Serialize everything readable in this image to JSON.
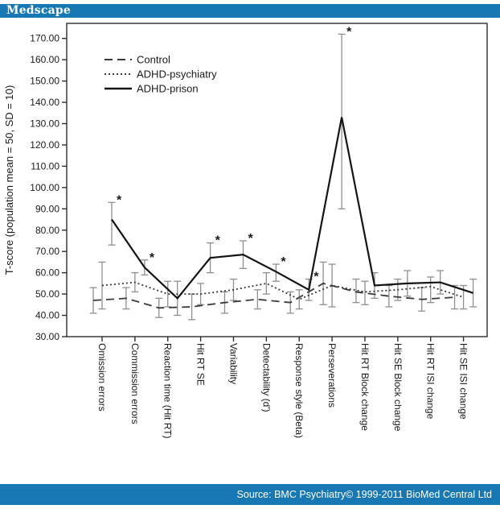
{
  "header": {
    "logo": "Medscape"
  },
  "footer": {
    "source": "Source: BMC Psychiatry© 1999-2011 BioMed Central Ltd"
  },
  "colors": {
    "brand_blue": "#1878b4",
    "axis_dark": "#2e2e2e",
    "text_dark": "#1a1a1a",
    "error_bar_gray": "#8f8f8f",
    "control_line": "#3a3a3a",
    "psychiatry_line": "#3a3a3a",
    "prison_line": "#141414"
  },
  "chart_data": {
    "type": "line",
    "title": "",
    "xlabel": "",
    "ylabel": "T-score (population mean = 50, SD = 10)",
    "ylim": [
      30,
      170
    ],
    "ytick_step": 10,
    "grid": false,
    "legend_position": "top-left-inside",
    "sig_symbol": "*",
    "categories": [
      "Omission errors",
      "Commission errors",
      "Reaction time (Hit RT)",
      "Hit RT SE",
      "Variability",
      "Detectability (d')",
      "Response style (Beta)",
      "Perseverations",
      "Hit RT Block change",
      "Hit SE Block change",
      "Hit RT ISI change",
      "Hit SE ISI change"
    ],
    "series": [
      {
        "name": "Control",
        "style": "longdash",
        "values": [
          47,
          48,
          43.5,
          44,
          46,
          47.5,
          46,
          55,
          51,
          49,
          47.5,
          48.5
        ],
        "err_lo": [
          41,
          43,
          39,
          38,
          41,
          43,
          41,
          45,
          46,
          44,
          42,
          43
        ],
        "err_hi": [
          53,
          53,
          48,
          50,
          51,
          52,
          51,
          65,
          57,
          54,
          53,
          54
        ],
        "sig_indices": []
      },
      {
        "name": "ADHD-psychiatry",
        "style": "dot",
        "values": [
          54,
          55.5,
          50,
          50,
          52,
          55,
          47.5,
          54,
          51,
          52,
          53.5,
          48.5
        ],
        "err_lo": [
          43,
          51,
          44,
          45,
          47,
          50,
          43,
          44,
          45,
          47,
          46,
          43
        ],
        "err_hi": [
          65,
          60,
          56,
          55,
          57,
          60,
          52,
          64,
          56,
          57,
          58,
          54
        ],
        "sig_indices": []
      },
      {
        "name": "ADHD-prison",
        "style": "solid",
        "values": [
          85,
          62.5,
          48,
          67,
          68.5,
          60.5,
          52,
          133,
          54,
          55,
          55.5,
          50.5
        ],
        "err_lo": [
          73,
          59,
          40,
          60,
          62,
          56,
          47,
          90,
          48,
          49,
          50,
          44
        ],
        "err_hi": [
          93,
          66,
          56,
          74,
          75,
          64,
          57,
          172,
          60,
          61,
          61,
          57
        ],
        "sig_indices": [
          0,
          1,
          3,
          4,
          5,
          6,
          7
        ]
      }
    ]
  }
}
